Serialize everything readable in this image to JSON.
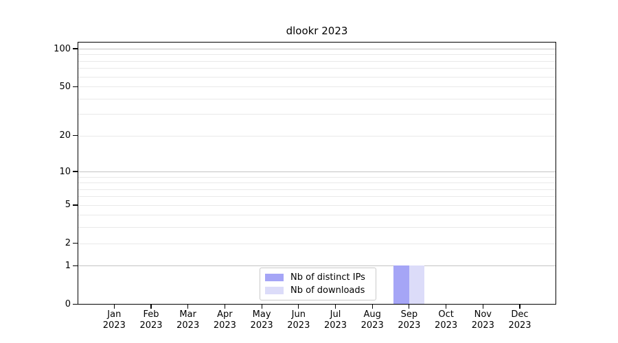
{
  "chart_data": {
    "type": "bar",
    "title": "dlookr 2023",
    "x_tick_months": [
      "Jan",
      "Feb",
      "Mar",
      "Apr",
      "May",
      "Jun",
      "Jul",
      "Aug",
      "Sep",
      "Oct",
      "Nov",
      "Dec"
    ],
    "x_tick_year": "2023",
    "series": [
      {
        "name": "Nb of distinct IPs",
        "color": "#a5a5f6",
        "values": [
          0,
          0,
          0,
          0,
          0,
          0,
          0,
          0,
          1,
          0,
          0,
          0
        ]
      },
      {
        "name": "Nb of downloads",
        "color": "#dcdcf9",
        "values": [
          0,
          0,
          0,
          0,
          0,
          0,
          0,
          0,
          1,
          0,
          0,
          0
        ]
      }
    ],
    "y_axis": {
      "scale": "log1p",
      "ticks": [
        0,
        1,
        2,
        5,
        10,
        20,
        50,
        100
      ],
      "major_gridlines": [
        1,
        10,
        100
      ],
      "minor_gridlines": [
        2,
        3,
        4,
        5,
        6,
        7,
        8,
        9,
        20,
        30,
        40,
        50,
        60,
        70,
        80,
        90
      ],
      "ylim": [
        0,
        113
      ]
    },
    "legend": {
      "location": "lower center",
      "items": [
        "Nb of distinct IPs",
        "Nb of downloads"
      ]
    },
    "grid": true
  },
  "colors": {
    "background": "#ffffff",
    "bar_distinct_ips": "#a5a5f6",
    "bar_downloads": "#dcdcf9",
    "grid_major": "#c2c2c2",
    "grid_minor": "#e9e9e9",
    "spine": "#000000",
    "text": "#000000",
    "legend_border": "#c9c9c9"
  }
}
